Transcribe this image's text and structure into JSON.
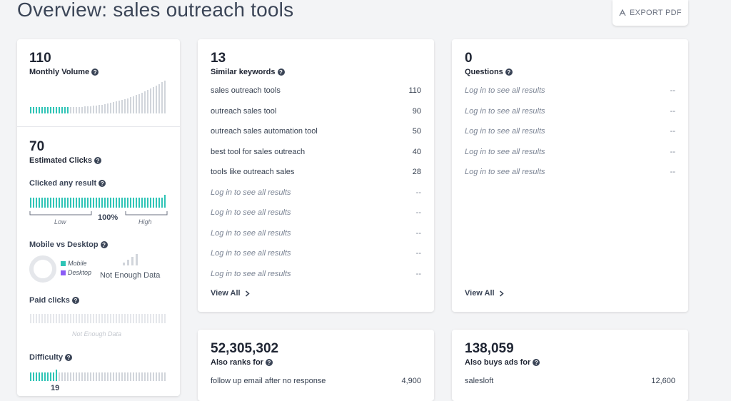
{
  "page": {
    "title": "Overview: sales outreach tools",
    "export_label": "EXPORT PDF"
  },
  "volume": {
    "value": "110",
    "label": "Monthly Volume"
  },
  "clicks": {
    "value": "70",
    "label": "Estimated Clicks",
    "any_result_label": "Clicked any result",
    "any_result_pct": "100%",
    "low": "Low",
    "high": "High",
    "mobile_desktop_label": "Mobile vs Desktop",
    "mobile": "Mobile",
    "desktop": "Desktop",
    "not_enough": "Not Enough Data",
    "paid_label": "Paid clicks",
    "paid_not_enough": "Not Enough Data",
    "difficulty_label": "Difficulty",
    "difficulty_value": "19"
  },
  "similar": {
    "count": "13",
    "label": "Similar keywords",
    "rows": [
      {
        "k": "sales outreach tools",
        "v": "110"
      },
      {
        "k": "outreach sales tool",
        "v": "90"
      },
      {
        "k": "outreach sales automation tool",
        "v": "50"
      },
      {
        "k": "best tool for sales outreach",
        "v": "40"
      },
      {
        "k": "tools like outreach sales",
        "v": "28"
      },
      {
        "k": "Log in to see all results",
        "v": "--"
      },
      {
        "k": "Log in to see all results",
        "v": "--"
      },
      {
        "k": "Log in to see all results",
        "v": "--"
      },
      {
        "k": "Log in to see all results",
        "v": "--"
      },
      {
        "k": "Log in to see all results",
        "v": "--"
      }
    ],
    "view_all": "View All"
  },
  "questions": {
    "count": "0",
    "label": "Questions",
    "rows": [
      {
        "k": "Log in to see all results",
        "v": "--"
      },
      {
        "k": "Log in to see all results",
        "v": "--"
      },
      {
        "k": "Log in to see all results",
        "v": "--"
      },
      {
        "k": "Log in to see all results",
        "v": "--"
      },
      {
        "k": "Log in to see all results",
        "v": "--"
      }
    ],
    "view_all": "View All"
  },
  "also_ranks": {
    "count": "52,305,302",
    "label": "Also ranks for",
    "first_row": {
      "k": "follow up email after no response",
      "v": "4,900"
    }
  },
  "also_buys": {
    "count": "138,059",
    "label": "Also buys ads for",
    "first_row": {
      "k": "salesloft",
      "v": "12,600"
    }
  },
  "colors": {
    "teal": "#2ec4b6",
    "gray_bar": "#d1d5db",
    "mobile": "#2ec4b6",
    "desktop": "#8b5cf6"
  }
}
